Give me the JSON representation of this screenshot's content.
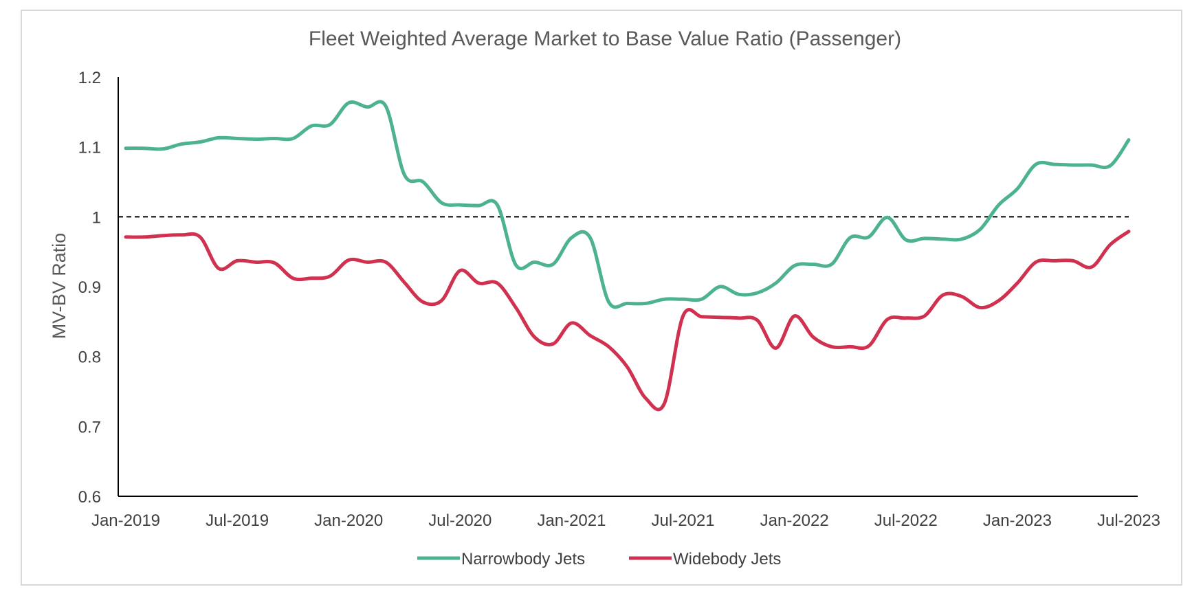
{
  "chart_data": {
    "type": "line",
    "title": "Fleet Weighted Average Market to Base Value Ratio (Passenger)",
    "xlabel": "",
    "ylabel": "MV-BV Ratio",
    "ylim": [
      0.6,
      1.2
    ],
    "yticks": [
      "0.6",
      "0.7",
      "0.8",
      "0.9",
      "1",
      "1.1",
      "1.2"
    ],
    "x_tick_labels": [
      "Jan-2019",
      "Jul-2019",
      "Jan-2020",
      "Jul-2020",
      "Jan-2021",
      "Jul-2021",
      "Jan-2022",
      "Jul-2022",
      "Jan-2023",
      "Jul-2023"
    ],
    "x": [
      "Jan-2019",
      "Feb-2019",
      "Mar-2019",
      "Apr-2019",
      "May-2019",
      "Jun-2019",
      "Jul-2019",
      "Aug-2019",
      "Sep-2019",
      "Oct-2019",
      "Nov-2019",
      "Dec-2019",
      "Jan-2020",
      "Feb-2020",
      "Mar-2020",
      "Apr-2020",
      "May-2020",
      "Jun-2020",
      "Jul-2020",
      "Aug-2020",
      "Sep-2020",
      "Oct-2020",
      "Nov-2020",
      "Dec-2020",
      "Jan-2021",
      "Feb-2021",
      "Mar-2021",
      "Apr-2021",
      "May-2021",
      "Jun-2021",
      "Jul-2021",
      "Aug-2021",
      "Sep-2021",
      "Oct-2021",
      "Nov-2021",
      "Dec-2021",
      "Jan-2022",
      "Feb-2022",
      "Mar-2022",
      "Apr-2022",
      "May-2022",
      "Jun-2022",
      "Jul-2022",
      "Aug-2022",
      "Sep-2022",
      "Oct-2022",
      "Nov-2022",
      "Dec-2022",
      "Jan-2023",
      "Feb-2023",
      "Mar-2023",
      "Apr-2023",
      "May-2023",
      "Jun-2023",
      "Jul-2023"
    ],
    "reference_line": {
      "y": 1.0,
      "style": "dashed",
      "color": "#000000"
    },
    "series": [
      {
        "name": "Narrowbody Jets",
        "color": "#4db38e",
        "values": [
          1.098,
          1.098,
          1.097,
          1.104,
          1.107,
          1.113,
          1.112,
          1.111,
          1.112,
          1.112,
          1.13,
          1.132,
          1.163,
          1.157,
          1.158,
          1.06,
          1.05,
          1.02,
          1.017,
          1.016,
          1.017,
          0.931,
          0.935,
          0.932,
          0.97,
          0.97,
          0.878,
          0.876,
          0.876,
          0.882,
          0.882,
          0.882,
          0.9,
          0.889,
          0.891,
          0.905,
          0.93,
          0.932,
          0.932,
          0.97,
          0.971,
          0.999,
          0.967,
          0.969,
          0.968,
          0.968,
          0.982,
          1.017,
          1.04,
          1.075,
          1.075,
          1.074,
          1.074,
          1.073,
          1.11
        ]
      },
      {
        "name": "Widebody Jets",
        "color": "#d0314f",
        "values": [
          0.971,
          0.971,
          0.973,
          0.974,
          0.971,
          0.926,
          0.937,
          0.935,
          0.934,
          0.912,
          0.912,
          0.915,
          0.938,
          0.935,
          0.935,
          0.906,
          0.878,
          0.88,
          0.923,
          0.905,
          0.905,
          0.87,
          0.828,
          0.818,
          0.848,
          0.83,
          0.814,
          0.785,
          0.74,
          0.733,
          0.858,
          0.857,
          0.856,
          0.855,
          0.852,
          0.812,
          0.858,
          0.828,
          0.814,
          0.814,
          0.815,
          0.853,
          0.855,
          0.858,
          0.888,
          0.886,
          0.87,
          0.88,
          0.905,
          0.935,
          0.937,
          0.937,
          0.928,
          0.96,
          0.979
        ]
      }
    ],
    "legend": {
      "position": "bottom"
    },
    "grid": false
  }
}
